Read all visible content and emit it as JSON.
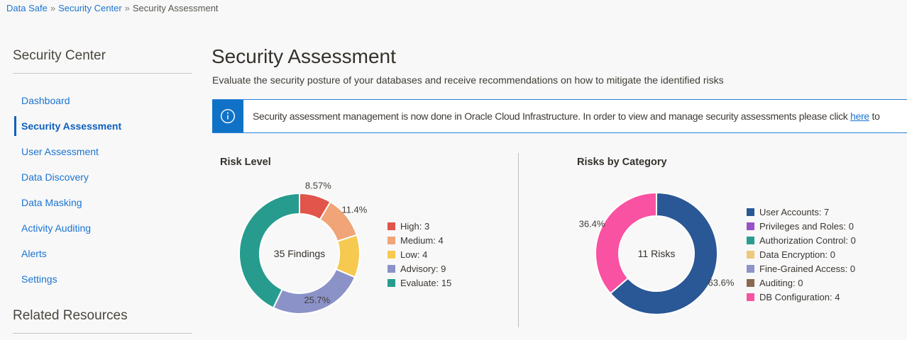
{
  "theme": {
    "link_color": "#1b74d2",
    "active_link_color": "#0d5fbe",
    "banner_blue": "#0f72c7",
    "banner_border": "#2a82d9",
    "text_color": "#3a3632",
    "heading_color": "#4a463f",
    "divider_color": "#bcc1c1",
    "background": "#f8f8f8"
  },
  "breadcrumb": {
    "separator": "»",
    "items": [
      {
        "label": "Data Safe"
      },
      {
        "label": "Security Center"
      },
      {
        "label": "Security Assessment"
      }
    ]
  },
  "sidebar": {
    "title": "Security Center",
    "items": [
      {
        "label": "Dashboard",
        "active": false
      },
      {
        "label": "Security Assessment",
        "active": true
      },
      {
        "label": "User Assessment",
        "active": false
      },
      {
        "label": "Data Discovery",
        "active": false
      },
      {
        "label": "Data Masking",
        "active": false
      },
      {
        "label": "Activity Auditing",
        "active": false
      },
      {
        "label": "Alerts",
        "active": false
      },
      {
        "label": "Settings",
        "active": false
      }
    ],
    "related_title": "Related Resources"
  },
  "main": {
    "title": "Security Assessment",
    "subtitle": "Evaluate the security posture of your databases and receive recommendations on how to mitigate the identified risks",
    "banner": {
      "text_before": "Security assessment management is now done in Oracle Cloud Infrastructure. In order to view and manage security assessments please click ",
      "link_text": "here",
      "text_after": " to"
    }
  },
  "chart_data": [
    {
      "type": "pie",
      "title": "Risk Level",
      "center_label": "35 Findings",
      "total": 35,
      "legend_position": "right",
      "slices": [
        {
          "name": "High",
          "value": 3,
          "pct_label": "8.57%",
          "label_pos": "outside",
          "color": "#e1554a"
        },
        {
          "name": "Medium",
          "value": 4,
          "pct_label": "11.4%",
          "label_pos": "outside",
          "color": "#f0a478"
        },
        {
          "name": "Low",
          "value": 4,
          "pct_label": "",
          "label_pos": "none",
          "color": "#f6ca51"
        },
        {
          "name": "Advisory",
          "value": 9,
          "pct_label": "25.7%",
          "label_pos": "inside",
          "color": "#8b92c8"
        },
        {
          "name": "Evaluate",
          "value": 15,
          "pct_label": "",
          "label_pos": "none",
          "color": "#279c8e"
        }
      ]
    },
    {
      "type": "pie",
      "title": "Risks by Category",
      "center_label": "11 Risks",
      "total": 11,
      "legend_position": "right",
      "slices": [
        {
          "name": "User Accounts",
          "value": 7,
          "pct_label": "63.6%",
          "label_pos": "outside",
          "color": "#2a5795"
        },
        {
          "name": "Privileges and Roles",
          "value": 0,
          "pct_label": "",
          "label_pos": "none",
          "color": "#9a52c7"
        },
        {
          "name": "Authorization Control",
          "value": 0,
          "pct_label": "",
          "label_pos": "none",
          "color": "#2a9d8f"
        },
        {
          "name": "Data Encryption",
          "value": 0,
          "pct_label": "",
          "label_pos": "none",
          "color": "#edc87d"
        },
        {
          "name": "Fine-Grained Access",
          "value": 0,
          "pct_label": "",
          "label_pos": "none",
          "color": "#8b93c8"
        },
        {
          "name": "Auditing",
          "value": 0,
          "pct_label": "",
          "label_pos": "none",
          "color": "#8a6952"
        },
        {
          "name": "DB Configuration",
          "value": 4,
          "pct_label": "36.4%",
          "label_pos": "outside",
          "color": "#f952a2"
        }
      ]
    }
  ]
}
